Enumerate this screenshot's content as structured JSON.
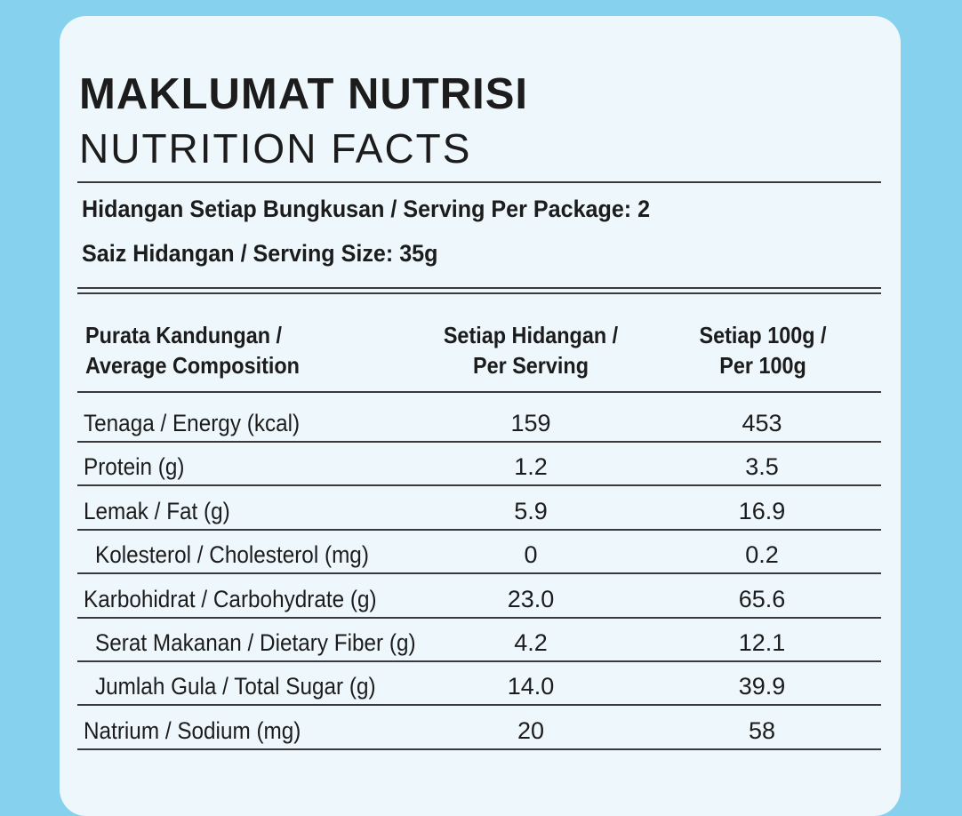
{
  "title_ms": "MAKLUMAT NUTRISI",
  "title_en": "NUTRITION FACTS",
  "serving_per_package": "Hidangan Setiap Bungkusan / Serving Per Package: 2",
  "serving_size": "Saiz Hidangan / Serving Size: 35g",
  "headers": {
    "col1": [
      "Purata Kandungan /",
      "Average Composition"
    ],
    "col2": [
      "Setiap Hidangan /",
      "Per Serving"
    ],
    "col3": [
      "Setiap 100g /",
      "Per 100g"
    ]
  },
  "rows": [
    {
      "name": "Tenaga / Energy (kcal)",
      "per_serving": "159",
      "per_100g": "453",
      "indent": false
    },
    {
      "name": "Protein (g)",
      "per_serving": "1.2",
      "per_100g": "3.5",
      "indent": false
    },
    {
      "name": "Lemak / Fat (g)",
      "per_serving": "5.9",
      "per_100g": "16.9",
      "indent": false
    },
    {
      "name": "Kolesterol / Cholesterol (mg)",
      "per_serving": "0",
      "per_100g": "0.2",
      "indent": true
    },
    {
      "name": "Karbohidrat / Carbohydrate (g)",
      "per_serving": "23.0",
      "per_100g": "65.6",
      "indent": false
    },
    {
      "name": "Serat Makanan / Dietary Fiber (g)",
      "per_serving": "4.2",
      "per_100g": "12.1",
      "indent": true
    },
    {
      "name": "Jumlah Gula / Total Sugar (g)",
      "per_serving": "14.0",
      "per_100g": "39.9",
      "indent": true
    },
    {
      "name": "Natrium / Sodium (mg)",
      "per_serving": "20",
      "per_100g": "58",
      "indent": false
    }
  ],
  "colors": {
    "background": "#86d2ee",
    "panel": "#eef7fc",
    "text": "#1c1c1c",
    "rule": "#3a3a3a"
  }
}
